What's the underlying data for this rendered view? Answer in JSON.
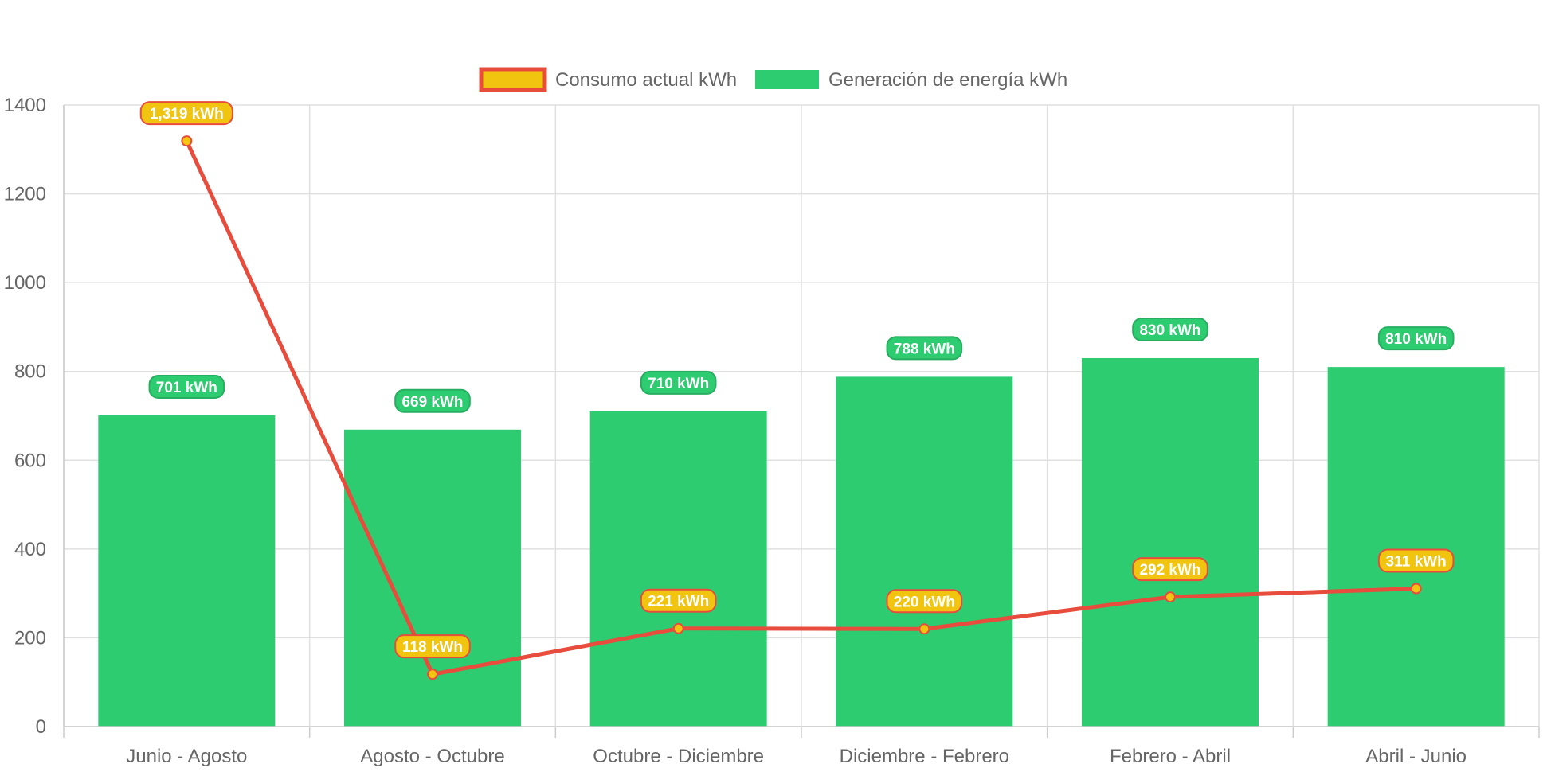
{
  "chart_data": {
    "type": "bar",
    "categories": [
      "Junio - Agosto",
      "Agosto - Octubre",
      "Octubre - Diciembre",
      "Diciembre - Febrero",
      "Febrero - Abril",
      "Abril - Junio"
    ],
    "ylim": [
      0,
      1400
    ],
    "yticks": [
      0,
      200,
      400,
      600,
      800,
      1000,
      1200,
      1400
    ],
    "grid": true,
    "legend_position": "top",
    "series": [
      {
        "name": "Consumo actual kWh",
        "type": "line",
        "values": [
          1319,
          118,
          221,
          220,
          292,
          311
        ],
        "labels": [
          "1,319 kWh",
          "118 kWh",
          "221 kWh",
          "220 kWh",
          "292 kWh",
          "311 kWh"
        ],
        "line_color": "#e74c3c",
        "fill_color": "#f1c40f"
      },
      {
        "name": "Generación de energía kWh",
        "type": "bar",
        "values": [
          701,
          669,
          710,
          788,
          830,
          810
        ],
        "labels": [
          "701 kWh",
          "669 kWh",
          "710 kWh",
          "788 kWh",
          "830 kWh",
          "810 kWh"
        ],
        "fill_color": "#2ecc71",
        "label_border": "#27ae60"
      }
    ]
  }
}
